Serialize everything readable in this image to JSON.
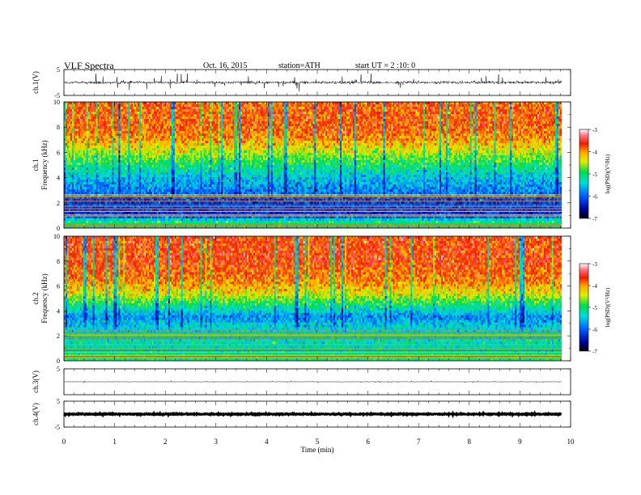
{
  "header": {
    "title": "VLF Spectra",
    "date": "Oct. 16, 2015",
    "station": "station=ATH",
    "start_ut": "start UT =  2 :10: 0"
  },
  "chart_data": {
    "type": "heatmap",
    "xlabel": "Time (min)",
    "x_ticks": [
      "0",
      "1",
      "2",
      "3",
      "4",
      "5",
      "6",
      "7",
      "8",
      "9",
      "10"
    ],
    "xlim": [
      0,
      10
    ],
    "data_end_min": 9.82,
    "panels": [
      {
        "kind": "waveform",
        "ylabel": "ch.1(V)",
        "ylim": [
          -5,
          5
        ],
        "y_ticks": [
          "5",
          "-5"
        ],
        "amplitude": 0.8,
        "spike_amplitude": 3.5,
        "color": "#000000"
      },
      {
        "kind": "spectrogram",
        "ylabel": "ch.1",
        "ylabel2": "Frequency (kHz)",
        "ylim": [
          0,
          10
        ],
        "y_ticks": [
          "0",
          "2",
          "4",
          "6",
          "8",
          "10"
        ],
        "colorbar_label": "log(PSD)(V²/Hz)",
        "colorbar_ticks": [
          "-3",
          "-4",
          "-5",
          "-6",
          "-7"
        ],
        "clim": [
          -7,
          -3
        ],
        "psd_profile": [
          {
            "f": 0.0,
            "v": -5.2
          },
          {
            "f": 0.5,
            "v": -5.0
          },
          {
            "f": 1.0,
            "v": -6.3
          },
          {
            "f": 2.0,
            "v": -6.2
          },
          {
            "f": 3.0,
            "v": -5.8
          },
          {
            "f": 4.0,
            "v": -5.5
          },
          {
            "f": 5.0,
            "v": -5.0
          },
          {
            "f": 6.0,
            "v": -4.5
          },
          {
            "f": 7.0,
            "v": -4.0
          },
          {
            "f": 8.0,
            "v": -3.8
          },
          {
            "f": 10.0,
            "v": -3.8
          }
        ]
      },
      {
        "kind": "spectrogram",
        "ylabel": "ch.2",
        "ylabel2": "Frequency (kHz)",
        "ylim": [
          0,
          10
        ],
        "y_ticks": [
          "0",
          "2",
          "4",
          "6",
          "8",
          "10"
        ],
        "colorbar_label": "log(PSD)(V²/Hz)",
        "colorbar_ticks": [
          "-3",
          "-4",
          "-5",
          "-6",
          "-7"
        ],
        "clim": [
          -7,
          -3
        ],
        "psd_profile": [
          {
            "f": 0.0,
            "v": -5.0
          },
          {
            "f": 1.0,
            "v": -5.3
          },
          {
            "f": 2.0,
            "v": -5.2
          },
          {
            "f": 3.0,
            "v": -5.5
          },
          {
            "f": 3.5,
            "v": -5.8
          },
          {
            "f": 4.5,
            "v": -5.0
          },
          {
            "f": 5.5,
            "v": -4.3
          },
          {
            "f": 6.5,
            "v": -3.9
          },
          {
            "f": 8.0,
            "v": -3.7
          },
          {
            "f": 10.0,
            "v": -3.7
          }
        ]
      },
      {
        "kind": "waveform",
        "ylabel": "ch.3(V)",
        "ylim": [
          -5,
          5
        ],
        "y_ticks": [
          "5"
        ],
        "amplitude": 0.12,
        "spike_amplitude": 0.4,
        "color": "#000000"
      },
      {
        "kind": "waveform",
        "ylabel": "ch.4(V)",
        "ylim": [
          -5,
          5
        ],
        "y_ticks": [
          "5",
          "-5"
        ],
        "amplitude": 0.25,
        "spike_amplitude": 0.3,
        "color": "#000000"
      }
    ]
  }
}
